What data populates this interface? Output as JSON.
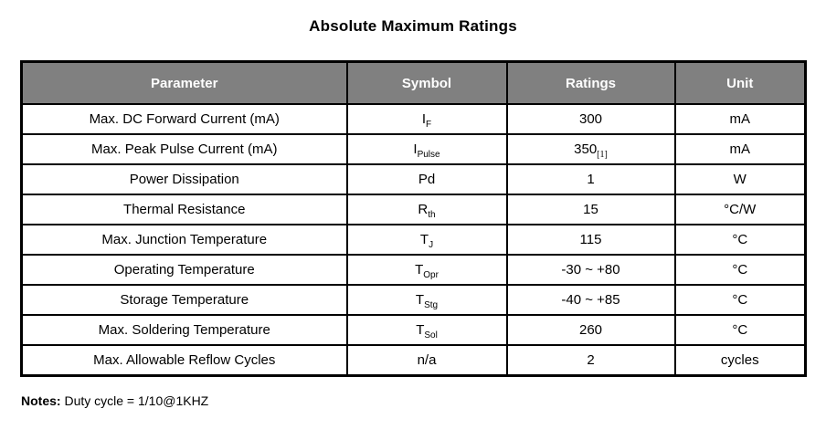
{
  "title": "Absolute Maximum Ratings",
  "colors": {
    "header_bg": "#808080",
    "header_text": "#ffffff",
    "border": "#000000",
    "body_text": "#000000",
    "page_bg": "#ffffff"
  },
  "table": {
    "headers": {
      "parameter": "Parameter",
      "symbol": "Symbol",
      "ratings": "Ratings",
      "unit": "Unit"
    },
    "rows": [
      {
        "parameter": "Max. DC Forward Current (mA)",
        "symbol": {
          "base": "I",
          "sub": "F"
        },
        "rating": {
          "value": "300",
          "sub": ""
        },
        "unit": "mA"
      },
      {
        "parameter": "Max. Peak Pulse Current (mA)",
        "symbol": {
          "base": "I",
          "sub": "Pulse"
        },
        "rating": {
          "value": "350",
          "sub": "[1]"
        },
        "unit": "mA"
      },
      {
        "parameter": "Power Dissipation",
        "symbol": {
          "base": "Pd",
          "sub": ""
        },
        "rating": {
          "value": "1",
          "sub": ""
        },
        "unit": "W"
      },
      {
        "parameter": "Thermal Resistance",
        "symbol": {
          "base": "R",
          "sub": "th"
        },
        "rating": {
          "value": "15",
          "sub": ""
        },
        "unit": "°C/W"
      },
      {
        "parameter": "Max. Junction Temperature",
        "symbol": {
          "base": "T",
          "sub": "J"
        },
        "rating": {
          "value": "115",
          "sub": ""
        },
        "unit": "°C"
      },
      {
        "parameter": "Operating Temperature",
        "symbol": {
          "base": "T",
          "sub": "Opr"
        },
        "rating": {
          "value": "-30 ~ +80",
          "sub": ""
        },
        "unit": "°C"
      },
      {
        "parameter": "Storage Temperature",
        "symbol": {
          "base": "T",
          "sub": "Stg"
        },
        "rating": {
          "value": "-40 ~ +85",
          "sub": ""
        },
        "unit": "°C"
      },
      {
        "parameter": "Max. Soldering Temperature",
        "symbol": {
          "base": "T",
          "sub": "Sol"
        },
        "rating": {
          "value": "260",
          "sub": ""
        },
        "unit": "°C"
      },
      {
        "parameter": "Max. Allowable Reflow Cycles",
        "symbol": {
          "base": "n/a",
          "sub": ""
        },
        "rating": {
          "value": "2",
          "sub": ""
        },
        "unit": "cycles"
      }
    ]
  },
  "notes": {
    "label": "Notes:",
    "text": " Duty cycle = 1/10@1KHZ"
  }
}
